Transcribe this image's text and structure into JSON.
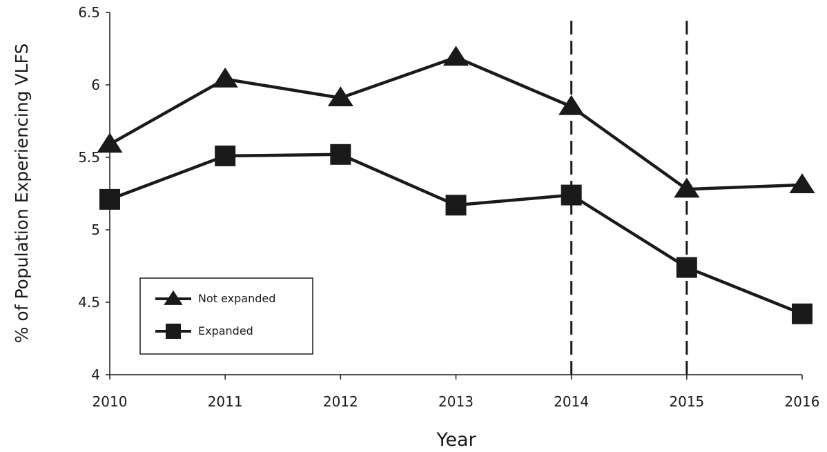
{
  "chart_data": {
    "type": "line",
    "title": "",
    "xlabel": "Year",
    "ylabel": "% of Population Experiencing VLFS",
    "x": [
      2010,
      2011,
      2012,
      2013,
      2014,
      2015,
      2016
    ],
    "x_tick_labels": [
      "2010",
      "2011",
      "2012",
      "2013",
      "2014",
      "2015",
      "2016"
    ],
    "ylim": [
      4,
      6.5
    ],
    "y_ticks": [
      4,
      4.5,
      5,
      5.5,
      6,
      6.5
    ],
    "y_tick_labels": [
      "4",
      "4.5",
      "5",
      "5.5",
      "6",
      "6.5"
    ],
    "grid": false,
    "series": [
      {
        "name": "Not expanded",
        "marker": "triangle",
        "color": "#1a1a1a",
        "values": [
          5.59,
          6.04,
          5.91,
          6.19,
          5.85,
          5.28,
          5.31
        ]
      },
      {
        "name": "Expanded",
        "marker": "square",
        "color": "#1a1a1a",
        "values": [
          5.21,
          5.51,
          5.52,
          5.17,
          5.24,
          4.74,
          4.42
        ]
      }
    ],
    "vertical_reference_lines": [
      2014,
      2015
    ],
    "reference_line_style": "dashed",
    "legend_position": "bottom-left"
  }
}
